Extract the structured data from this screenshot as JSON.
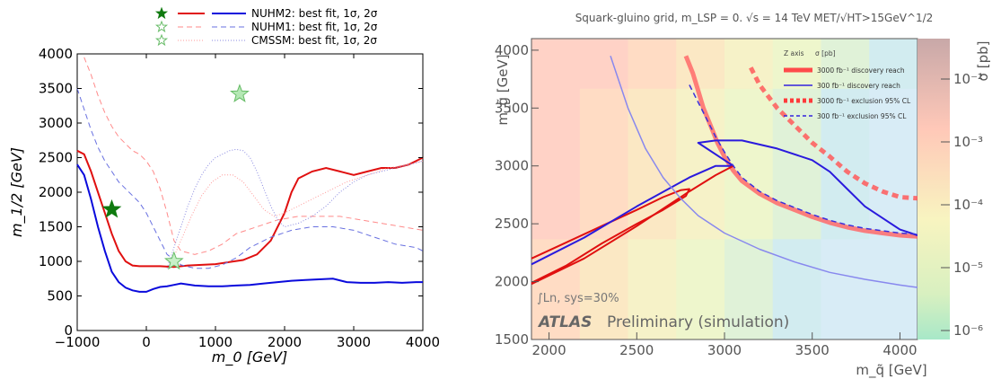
{
  "chart_data": [
    {
      "type": "line",
      "xlabel": "m_0 [GeV]",
      "ylabel": "m_1/2 [GeV]",
      "xlim": [
        -1000,
        4000
      ],
      "ylim": [
        0,
        4000
      ],
      "x_ticks": [
        "−1000",
        "0",
        "1000",
        "2000",
        "3000",
        "4000"
      ],
      "y_ticks": [
        "0",
        "500",
        "1000",
        "1500",
        "2000",
        "2500",
        "3000",
        "3500",
        "4000"
      ],
      "legend_position": "top-center",
      "legend": [
        {
          "label": "NUHM2: best fit, 1σ, 2σ",
          "color": "#1010dd",
          "star_color": "#0f7a0f"
        },
        {
          "label": "NUHM1: best fit, 1σ, 2σ",
          "color": "#6b74e0",
          "star_color": "#62c062"
        },
        {
          "label": "CMSSM: best fit, 1σ, 2σ",
          "color": "#8b8ed8",
          "star_color": "#7fd07f"
        }
      ],
      "best_fits": [
        {
          "series": "NUHM2",
          "x": -500,
          "y": 1750
        },
        {
          "series": "NUHM1",
          "x": 1350,
          "y": 3420
        },
        {
          "series": "CMSSM",
          "x": 400,
          "y": 1000
        }
      ],
      "series": [
        {
          "name": "NUHM2 2σ",
          "x": [
            -1000,
            -900,
            -800,
            -700,
            -600,
            -500,
            -400,
            -300,
            -200,
            -100,
            0,
            100,
            200,
            300,
            400,
            500,
            700,
            900,
            1100,
            1300,
            1500,
            1700,
            1900,
            2100,
            2300,
            2500,
            2700,
            2900,
            3100,
            3300,
            3500,
            3700,
            3900,
            4000
          ],
          "y": [
            2400,
            2250,
            1900,
            1500,
            1150,
            850,
            700,
            620,
            580,
            560,
            560,
            600,
            630,
            640,
            660,
            680,
            650,
            640,
            640,
            650,
            660,
            680,
            700,
            720,
            730,
            740,
            750,
            700,
            690,
            690,
            700,
            690,
            700,
            700
          ]
        },
        {
          "name": "NUHM2 1σ",
          "x": [
            -1000,
            -900,
            -800,
            -700,
            -600,
            -500,
            -400,
            -300,
            -200,
            -100,
            0,
            200,
            400,
            600,
            800,
            1000,
            1200,
            1400,
            1600,
            1800,
            1900,
            2000,
            2100,
            2200,
            2400,
            2600,
            2800,
            3000,
            3200,
            3400,
            3600,
            3800,
            4000
          ],
          "y": [
            2600,
            2550,
            2300,
            2000,
            1700,
            1400,
            1150,
            1000,
            940,
            930,
            930,
            930,
            920,
            940,
            950,
            960,
            990,
            1020,
            1100,
            1300,
            1500,
            1700,
            2000,
            2200,
            2300,
            2350,
            2300,
            2250,
            2300,
            2350,
            2350,
            2400,
            2500
          ]
        },
        {
          "name": "NUHM1 2σ",
          "x": [
            -1000,
            -900,
            -800,
            -700,
            -600,
            -500,
            -400,
            -300,
            -200,
            -100,
            0,
            100,
            200,
            300,
            500,
            700,
            900,
            1100,
            1300,
            1500,
            1800,
            2100,
            2400,
            2700,
            3000,
            3300,
            3600,
            3900,
            4000
          ],
          "y": [
            3500,
            3200,
            2900,
            2650,
            2450,
            2300,
            2150,
            2050,
            1950,
            1850,
            1700,
            1500,
            1300,
            1100,
            950,
            900,
            900,
            950,
            1050,
            1200,
            1350,
            1450,
            1500,
            1500,
            1450,
            1350,
            1250,
            1200,
            1150
          ]
        },
        {
          "name": "NUHM1 1σ",
          "x": [
            -900,
            -800,
            -700,
            -600,
            -500,
            -400,
            -300,
            -200,
            -100,
            0,
            100,
            200,
            300,
            400,
            500,
            700,
            900,
            1100,
            1300,
            1600,
            1900,
            2200,
            2500,
            2800,
            3100,
            3400,
            3700,
            4000
          ],
          "y": [
            3950,
            3700,
            3400,
            3150,
            2950,
            2800,
            2700,
            2600,
            2550,
            2450,
            2300,
            2050,
            1700,
            1300,
            1150,
            1100,
            1150,
            1250,
            1400,
            1500,
            1600,
            1650,
            1650,
            1650,
            1600,
            1550,
            1500,
            1450
          ]
        },
        {
          "name": "CMSSM 2σ",
          "x": [
            300,
            400,
            500,
            600,
            700,
            800,
            900,
            1000,
            1100,
            1200,
            1300,
            1400,
            1500,
            1600,
            1700,
            1800,
            1900,
            2000,
            2200,
            2400,
            2600,
            2800,
            3000,
            3200,
            3400,
            3600,
            3800,
            4000
          ],
          "y": [
            900,
            1200,
            1500,
            1800,
            2050,
            2250,
            2400,
            2500,
            2550,
            2600,
            2620,
            2600,
            2500,
            2300,
            2050,
            1800,
            1600,
            1500,
            1550,
            1650,
            1800,
            2000,
            2150,
            2250,
            2300,
            2350,
            2400,
            2450
          ]
        },
        {
          "name": "CMSSM 1σ",
          "x": [
            350,
            500,
            650,
            800,
            950,
            1100,
            1250,
            1400,
            1550,
            1700,
            1850,
            2000,
            2300,
            2600,
            2900,
            3200,
            3500,
            3800,
            4000
          ],
          "y": [
            950,
            1300,
            1650,
            1950,
            2150,
            2250,
            2250,
            2150,
            1950,
            1750,
            1650,
            1700,
            1850,
            2000,
            2150,
            2250,
            2350,
            2400,
            2450
          ]
        }
      ]
    },
    {
      "type": "line",
      "title": "Squark-gluino grid, m_LSP = 0.  √s = 14 TeV  MET/√HT>15GeV^1/2",
      "xlabel": "m_q̃ [GeV]",
      "ylabel": "m_g̃ [GeV]",
      "zlabel": "σ [pb]",
      "xlim": [
        1900,
        4100
      ],
      "ylim": [
        1500,
        4100
      ],
      "x_ticks": [
        "2000",
        "2500",
        "3000",
        "3500",
        "4000"
      ],
      "y_ticks": [
        "1500",
        "2000",
        "2500",
        "3000",
        "3500",
        "4000"
      ],
      "z_ticks": [
        "10⁻²",
        "10⁻³",
        "10⁻⁴",
        "10⁻⁵",
        "10⁻⁶"
      ],
      "annotation_stats": "∫Ln, sys=30%",
      "annotation_atlas": "ATLAS",
      "annotation_prelim": "Preliminary (simulation)",
      "legend_position": "top-right",
      "legend_header": {
        "left": "Z axis",
        "right": "σ [pb]"
      },
      "legend": [
        {
          "label": "3000 fb⁻¹ discovery reach",
          "color": "#ff5a5a",
          "style": "thick"
        },
        {
          "label": "300 fb⁻¹ discovery reach",
          "color": "#3322dd",
          "style": "solid"
        },
        {
          "label": "3000 fb⁻¹ exclusion 95% CL",
          "color": "#ff4444",
          "style": "thick-dash"
        },
        {
          "label": "300 fb⁻¹ exclusion 95% CL",
          "color": "#3322dd",
          "style": "dash"
        }
      ],
      "colors": {
        "heatmap_low": "#ffcfc0",
        "heatmap_mid": "#f3f7c8",
        "heatmap_high": "#cdebf5"
      },
      "series": [
        {
          "name": "3000 fb-1 discovery (upper)",
          "x": [
            2780,
            2820,
            2850,
            2880,
            2920,
            2960,
            3000,
            3050,
            3100,
            3200,
            3300,
            3400,
            3500,
            3600,
            3700,
            3800,
            3900,
            4000,
            4100
          ],
          "y": [
            3950,
            3800,
            3650,
            3500,
            3350,
            3200,
            3080,
            2960,
            2870,
            2760,
            2680,
            2620,
            2560,
            2510,
            2470,
            2440,
            2420,
            2400,
            2390
          ]
        },
        {
          "name": "3000 fb-1 discovery (band)",
          "x": [
            1900,
            2100,
            2300,
            2500,
            2650,
            2750,
            2800,
            2780,
            2650,
            2500,
            2300,
            2100,
            1900
          ],
          "y": [
            2200,
            2340,
            2480,
            2620,
            2730,
            2790,
            2800,
            2740,
            2620,
            2500,
            2330,
            2140,
            1990
          ]
        },
        {
          "name": "300 fb-1 discovery",
          "x": [
            1900,
            2200,
            2500,
            2800,
            2950,
            3050,
            3000,
            2850,
            2950,
            3100,
            3300,
            3500,
            3600,
            3700,
            3800,
            3900,
            4000,
            4100
          ],
          "y": [
            2150,
            2380,
            2650,
            2900,
            3000,
            3000,
            3050,
            3200,
            3220,
            3220,
            3150,
            3050,
            2950,
            2800,
            2650,
            2550,
            2450,
            2400
          ]
        },
        {
          "name": "300 fb-1 discovery (band lower)",
          "x": [
            1900,
            2200,
            2500,
            2800,
            2950,
            3050
          ],
          "y": [
            1980,
            2200,
            2480,
            2780,
            2920,
            3000
          ]
        },
        {
          "name": "3000 fb-1 exclusion 95% CL",
          "x": [
            3150,
            3200,
            3300,
            3400,
            3500,
            3600,
            3700,
            3800,
            3900,
            4000,
            4100
          ],
          "y": [
            3850,
            3700,
            3500,
            3350,
            3200,
            3080,
            2950,
            2850,
            2780,
            2730,
            2720
          ]
        },
        {
          "name": "300 fb-1 exclusion 95% CL",
          "x": [
            2800,
            2850,
            2900,
            2950,
            3000,
            3050,
            3100,
            3200,
            3300,
            3400,
            3500,
            3600,
            3700,
            3800,
            3900,
            4000,
            4100
          ],
          "y": [
            3700,
            3550,
            3400,
            3250,
            3120,
            3000,
            2900,
            2780,
            2700,
            2640,
            2580,
            2530,
            2490,
            2460,
            2440,
            2420,
            2410
          ]
        },
        {
          "name": "reference curve",
          "x": [
            2350,
            2450,
            2550,
            2650,
            2750,
            2850,
            3000,
            3200,
            3400,
            3600,
            3800,
            4000,
            4100
          ],
          "y": [
            3950,
            3500,
            3150,
            2900,
            2720,
            2570,
            2420,
            2280,
            2170,
            2080,
            2020,
            1970,
            1950
          ]
        }
      ]
    }
  ]
}
